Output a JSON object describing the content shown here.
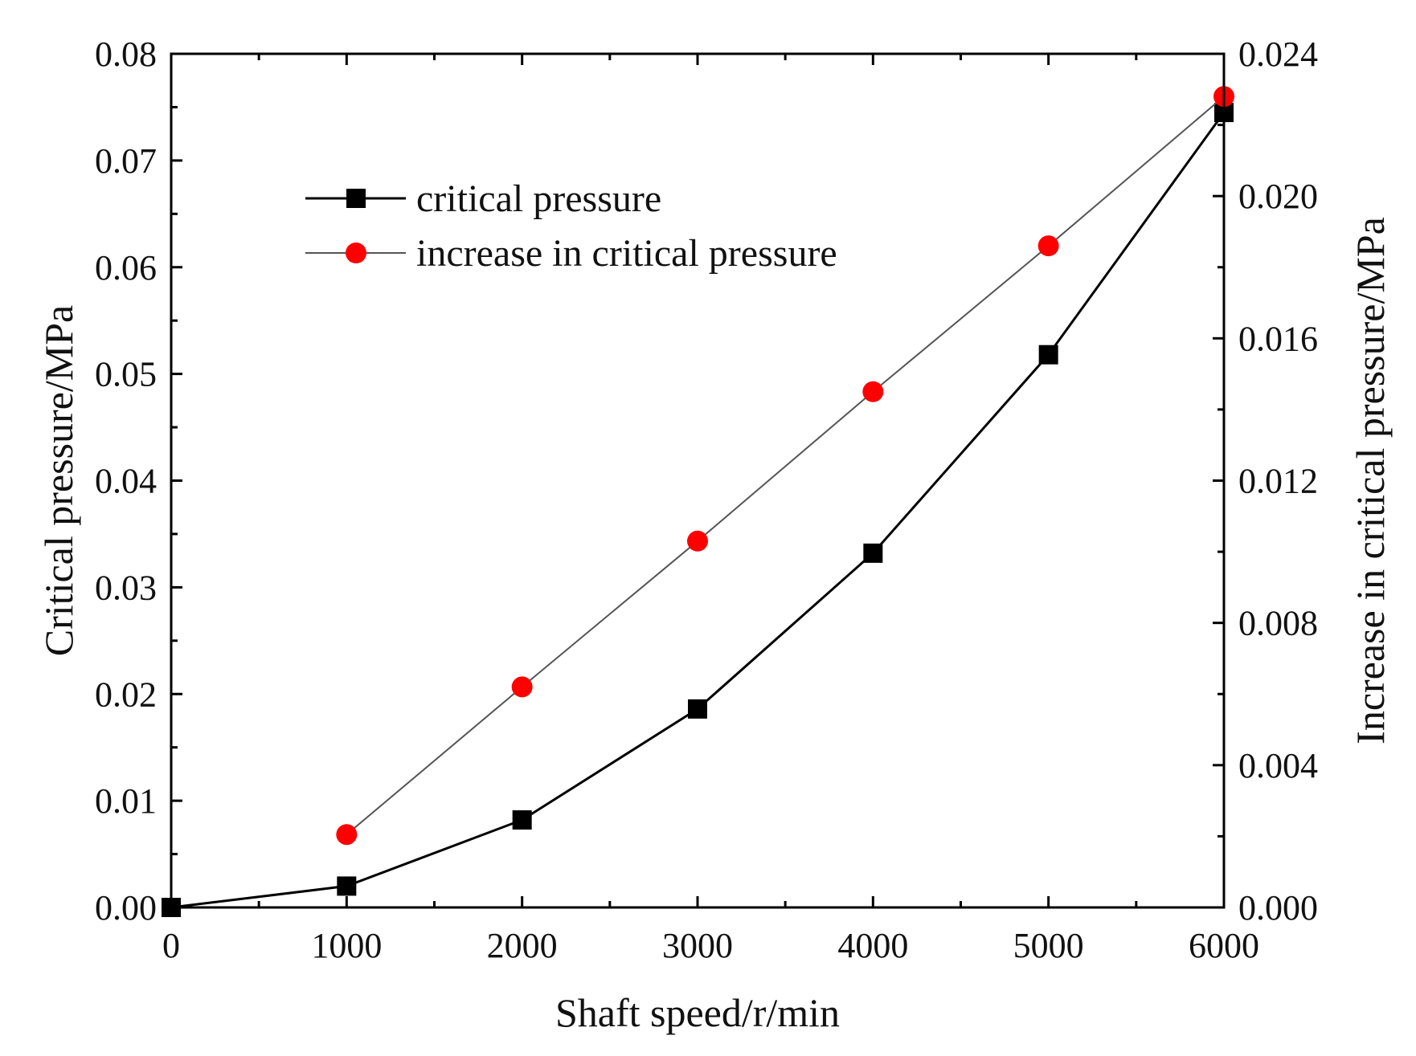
{
  "chart_data": {
    "type": "line",
    "x": [
      0,
      1000,
      2000,
      3000,
      4000,
      5000,
      6000
    ],
    "xlabel": "Shaft speed/r/min",
    "xlim": [
      0,
      6000
    ],
    "xticks": [
      "0",
      "1000",
      "2000",
      "3000",
      "4000",
      "5000",
      "6000"
    ],
    "ylabel": "Critical pressure/MPa",
    "ylim": [
      0,
      0.08
    ],
    "yticks": [
      "0.00",
      "0.01",
      "0.02",
      "0.03",
      "0.04",
      "0.05",
      "0.06",
      "0.07",
      "0.08"
    ],
    "y2label": "Increase in critical pressure/MPa",
    "y2lim": [
      0,
      0.024
    ],
    "y2ticks": [
      "0.000",
      "0.004",
      "0.008",
      "0.012",
      "0.016",
      "0.020",
      "0.024"
    ],
    "legend_position": "top-left",
    "series": [
      {
        "name": "critical pressure",
        "axis": "left",
        "marker": "square",
        "color": "#000000",
        "line_color": "#000000",
        "x": [
          0,
          1000,
          2000,
          3000,
          4000,
          5000,
          6000
        ],
        "values": [
          0.0,
          0.002,
          0.0082,
          0.0186,
          0.0332,
          0.0518,
          0.0745
        ]
      },
      {
        "name": "increase in critical pressure",
        "axis": "right",
        "marker": "circle",
        "color": "#ff0000",
        "line_color": "#555555",
        "x": [
          1000,
          2000,
          3000,
          4000,
          5000,
          6000
        ],
        "values": [
          0.00205,
          0.0062,
          0.0103,
          0.0145,
          0.0186,
          0.0228
        ]
      }
    ]
  }
}
